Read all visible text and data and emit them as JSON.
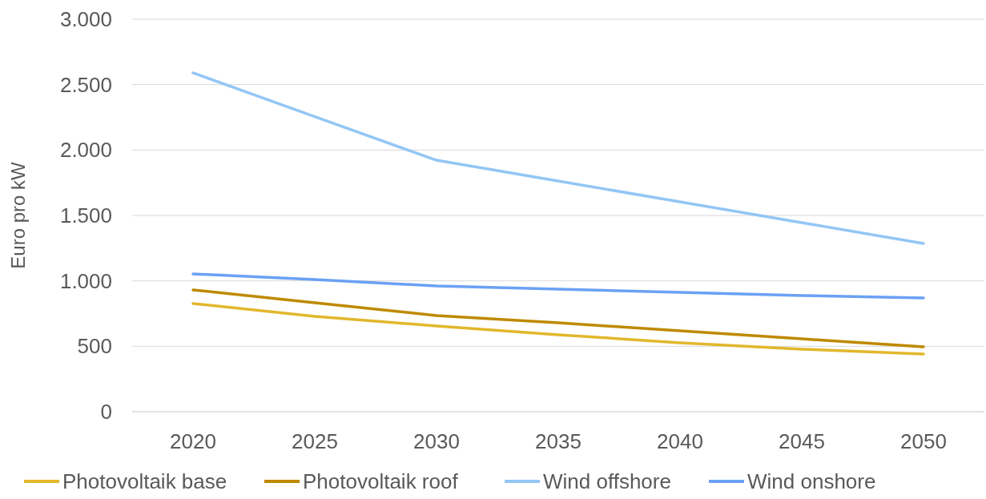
{
  "chart_data": {
    "type": "line",
    "ylabel": "Euro pro kW",
    "categories": [
      "2020",
      "2025",
      "2030",
      "2035",
      "2040",
      "2045",
      "2050"
    ],
    "series": [
      {
        "name": "Photovoltaik base",
        "color": "#e2b72c",
        "values": [
          827,
          729,
          655,
          588,
          527,
          478,
          441
        ]
      },
      {
        "name": "Photovoltaik roof",
        "color": "#bf8900",
        "values": [
          931,
          833,
          735,
          680,
          618,
          557,
          496
        ]
      },
      {
        "name": "Wind offshore",
        "color": "#93c6f5",
        "values": [
          2590,
          2255,
          1922,
          1763,
          1604,
          1445,
          1286
        ]
      },
      {
        "name": "Wind onshore",
        "color": "#6aa1f4",
        "values": [
          1053,
          1010,
          961,
          937,
          912,
          888,
          869
        ]
      }
    ],
    "ylim": [
      0,
      3000
    ],
    "yticks": [
      {
        "value": 0,
        "label": "0"
      },
      {
        "value": 500,
        "label": "500"
      },
      {
        "value": 1000,
        "label": "1.000"
      },
      {
        "value": 1500,
        "label": "1.500"
      },
      {
        "value": 2000,
        "label": "2.000"
      },
      {
        "value": 2500,
        "label": "2.500"
      },
      {
        "value": 3000,
        "label": "3.000"
      }
    ],
    "grid": "y",
    "legend": "bottom",
    "marker": "none",
    "line_style": "solid"
  }
}
